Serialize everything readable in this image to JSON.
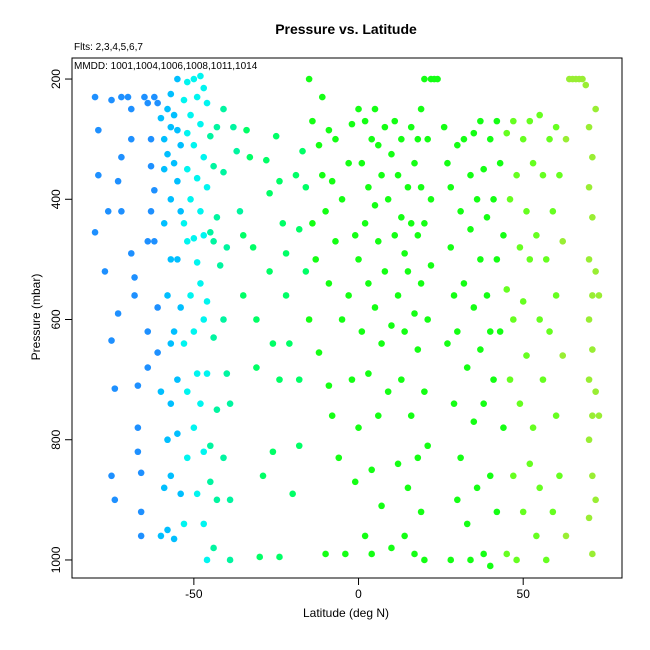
{
  "chart_data": {
    "type": "scatter",
    "title": "Pressure vs. Latitude",
    "notes": [
      "Flts: 2,3,4,5,6,7",
      "MMDD: 1001,1004,1006,1008,1011,1014"
    ],
    "xlabel": "Latitude (deg N)",
    "ylabel": "Pressure (mbar)",
    "xlim": [
      -87,
      80
    ],
    "ylim": [
      1030,
      165
    ],
    "y_reversed": true,
    "x_ticks": [
      -50,
      0,
      50
    ],
    "y_ticks": [
      200,
      400,
      600,
      800,
      1000
    ],
    "grid": false,
    "legend": "none",
    "color_encoding": "point colour shifts with latitude from blue (south) through cyan to green (north)",
    "colors": {
      "blue": "#1e90ff",
      "cyan_blue": "#00bfff",
      "cyan": "#00f5f0",
      "aqua_green": "#00f5a0",
      "spring_green": "#00ff66",
      "green": "#14ff14",
      "light_green": "#66ff20",
      "yellow_green": "#99ee33"
    },
    "points": [
      [
        -80,
        230
      ],
      [
        -79,
        285
      ],
      [
        -79,
        360
      ],
      [
        -80,
        455
      ],
      [
        -77,
        520
      ],
      [
        -76,
        420
      ],
      [
        -75,
        235
      ],
      [
        -75,
        635
      ],
      [
        -74,
        715
      ],
      [
        -74,
        900
      ],
      [
        -75,
        860
      ],
      [
        -73,
        590
      ],
      [
        -72,
        420
      ],
      [
        -73,
        370
      ],
      [
        -72,
        330
      ],
      [
        -72,
        230
      ],
      [
        -70,
        230
      ],
      [
        -69,
        250
      ],
      [
        -69,
        300
      ],
      [
        -69,
        490
      ],
      [
        -68,
        530
      ],
      [
        -68,
        560
      ],
      [
        -67,
        710
      ],
      [
        -67,
        780
      ],
      [
        -67,
        820
      ],
      [
        -66,
        855
      ],
      [
        -66,
        920
      ],
      [
        -66,
        960
      ],
      [
        -65,
        230
      ],
      [
        -64,
        240
      ],
      [
        -64,
        470
      ],
      [
        -64,
        620
      ],
      [
        -64,
        680
      ],
      [
        -63,
        300
      ],
      [
        -63,
        345
      ],
      [
        -63,
        420
      ],
      [
        -62,
        230
      ],
      [
        -62,
        385
      ],
      [
        -62,
        470
      ],
      [
        -61,
        240
      ],
      [
        -61,
        580
      ],
      [
        -61,
        655
      ],
      [
        -60,
        265
      ],
      [
        -60,
        720
      ],
      [
        -60,
        960
      ],
      [
        -59,
        300
      ],
      [
        -59,
        350
      ],
      [
        -59,
        440
      ],
      [
        -59,
        880
      ],
      [
        -58,
        250
      ],
      [
        -58,
        325
      ],
      [
        -58,
        560
      ],
      [
        -58,
        800
      ],
      [
        -58,
        950
      ],
      [
        -57,
        225
      ],
      [
        -57,
        280
      ],
      [
        -57,
        400
      ],
      [
        -57,
        500
      ],
      [
        -57,
        640
      ],
      [
        -57,
        740
      ],
      [
        -57,
        860
      ],
      [
        -56,
        260
      ],
      [
        -56,
        340
      ],
      [
        -56,
        620
      ],
      [
        -56,
        965
      ],
      [
        -55,
        200
      ],
      [
        -55,
        285
      ],
      [
        -55,
        370
      ],
      [
        -55,
        500
      ],
      [
        -55,
        700
      ],
      [
        -55,
        790
      ],
      [
        -54,
        310
      ],
      [
        -54,
        420
      ],
      [
        -54,
        580
      ],
      [
        -54,
        890
      ],
      [
        -53,
        235
      ],
      [
        -53,
        440
      ],
      [
        -53,
        640
      ],
      [
        -53,
        940
      ],
      [
        -52,
        205
      ],
      [
        -52,
        290
      ],
      [
        -52,
        350
      ],
      [
        -52,
        470
      ],
      [
        -52,
        720
      ],
      [
        -52,
        830
      ],
      [
        -51,
        260
      ],
      [
        -51,
        400
      ],
      [
        -51,
        560
      ],
      [
        -50,
        200
      ],
      [
        -50,
        310
      ],
      [
        -50,
        465
      ],
      [
        -50,
        620
      ],
      [
        -50,
        780
      ],
      [
        -49,
        230
      ],
      [
        -49,
        365
      ],
      [
        -49,
        505
      ],
      [
        -49,
        690
      ],
      [
        -49,
        890
      ],
      [
        -48,
        195
      ],
      [
        -48,
        275
      ],
      [
        -48,
        420
      ],
      [
        -48,
        540
      ],
      [
        -48,
        740
      ],
      [
        -47,
        215
      ],
      [
        -47,
        330
      ],
      [
        -47,
        460
      ],
      [
        -47,
        600
      ],
      [
        -47,
        820
      ],
      [
        -47,
        940
      ],
      [
        -46,
        240
      ],
      [
        -46,
        380
      ],
      [
        -46,
        570
      ],
      [
        -46,
        690
      ],
      [
        -46,
        1000
      ],
      [
        -45,
        295
      ],
      [
        -45,
        455
      ],
      [
        -45,
        810
      ],
      [
        -45,
        870
      ],
      [
        -44,
        345
      ],
      [
        -44,
        470
      ],
      [
        -44,
        630
      ],
      [
        -44,
        980
      ],
      [
        -43,
        280
      ],
      [
        -43,
        430
      ],
      [
        -43,
        750
      ],
      [
        -43,
        900
      ],
      [
        -42,
        510
      ],
      [
        -41,
        250
      ],
      [
        -41,
        355
      ],
      [
        -41,
        600
      ],
      [
        -41,
        830
      ],
      [
        -40,
        480
      ],
      [
        -40,
        690
      ],
      [
        -39,
        740
      ],
      [
        -39,
        900
      ],
      [
        -39,
        1000
      ],
      [
        -38,
        280
      ],
      [
        -37,
        320
      ],
      [
        -36,
        420
      ],
      [
        -35,
        460
      ],
      [
        -35,
        560
      ],
      [
        -34,
        285
      ],
      [
        -33,
        330
      ],
      [
        -32,
        480
      ],
      [
        -31,
        600
      ],
      [
        -31,
        680
      ],
      [
        -30,
        995
      ],
      [
        -29,
        860
      ],
      [
        -28,
        335
      ],
      [
        -27,
        390
      ],
      [
        -27,
        520
      ],
      [
        -26,
        640
      ],
      [
        -26,
        820
      ],
      [
        -25,
        295
      ],
      [
        -24,
        370
      ],
      [
        -24,
        700
      ],
      [
        -24,
        995
      ],
      [
        -23,
        440
      ],
      [
        -22,
        490
      ],
      [
        -22,
        560
      ],
      [
        -21,
        640
      ],
      [
        -20,
        890
      ],
      [
        -19,
        360
      ],
      [
        -18,
        450
      ],
      [
        -18,
        700
      ],
      [
        -18,
        810
      ],
      [
        -17,
        320
      ],
      [
        -16,
        380
      ],
      [
        -16,
        520
      ],
      [
        -15,
        200
      ],
      [
        -15,
        600
      ],
      [
        -14,
        270
      ],
      [
        -14,
        440
      ],
      [
        -13,
        500
      ],
      [
        -12,
        310
      ],
      [
        -12,
        655
      ],
      [
        -11,
        230
      ],
      [
        -11,
        360
      ],
      [
        -10,
        420
      ],
      [
        -10,
        990
      ],
      [
        -9,
        285
      ],
      [
        -9,
        540
      ],
      [
        -9,
        710
      ],
      [
        -8,
        370
      ],
      [
        -8,
        760
      ],
      [
        -7,
        300
      ],
      [
        -7,
        470
      ],
      [
        -6,
        830
      ],
      [
        -5,
        400
      ],
      [
        -5,
        600
      ],
      [
        -4,
        990
      ],
      [
        -3,
        340
      ],
      [
        -3,
        560
      ],
      [
        -2,
        275
      ],
      [
        -2,
        700
      ],
      [
        -1,
        460
      ],
      [
        -1,
        870
      ],
      [
        0,
        250
      ],
      [
        0,
        500
      ],
      [
        0,
        780
      ],
      [
        1,
        340
      ],
      [
        1,
        620
      ],
      [
        2,
        270
      ],
      [
        2,
        440
      ],
      [
        2,
        960
      ],
      [
        3,
        380
      ],
      [
        3,
        540
      ],
      [
        3,
        690
      ],
      [
        4,
        300
      ],
      [
        4,
        850
      ],
      [
        4,
        990
      ],
      [
        5,
        250
      ],
      [
        5,
        410
      ],
      [
        5,
        580
      ],
      [
        6,
        310
      ],
      [
        6,
        470
      ],
      [
        6,
        760
      ],
      [
        7,
        360
      ],
      [
        7,
        640
      ],
      [
        7,
        910
      ],
      [
        8,
        280
      ],
      [
        8,
        520
      ],
      [
        9,
        400
      ],
      [
        9,
        720
      ],
      [
        10,
        325
      ],
      [
        10,
        610
      ],
      [
        10,
        980
      ],
      [
        11,
        270
      ],
      [
        11,
        460
      ],
      [
        12,
        360
      ],
      [
        12,
        560
      ],
      [
        12,
        840
      ],
      [
        13,
        300
      ],
      [
        13,
        430
      ],
      [
        13,
        700
      ],
      [
        14,
        490
      ],
      [
        14,
        620
      ],
      [
        14,
        960
      ],
      [
        15,
        380
      ],
      [
        15,
        520
      ],
      [
        15,
        880
      ],
      [
        16,
        280
      ],
      [
        16,
        440
      ],
      [
        16,
        760
      ],
      [
        17,
        340
      ],
      [
        17,
        590
      ],
      [
        17,
        990
      ],
      [
        18,
        300
      ],
      [
        18,
        460
      ],
      [
        18,
        650
      ],
      [
        18,
        830
      ],
      [
        19,
        250
      ],
      [
        19,
        380
      ],
      [
        19,
        540
      ],
      [
        19,
        920
      ],
      [
        20,
        200
      ],
      [
        20,
        440
      ],
      [
        20,
        720
      ],
      [
        20,
        1000
      ],
      [
        21,
        300
      ],
      [
        21,
        600
      ],
      [
        21,
        810
      ],
      [
        22,
        200
      ],
      [
        22,
        400
      ],
      [
        22,
        510
      ],
      [
        23,
        200
      ],
      [
        24,
        200
      ],
      [
        26,
        280
      ],
      [
        27,
        340
      ],
      [
        27,
        640
      ],
      [
        28,
        380
      ],
      [
        28,
        480
      ],
      [
        28,
        1000
      ],
      [
        29,
        560
      ],
      [
        29,
        740
      ],
      [
        30,
        310
      ],
      [
        30,
        620
      ],
      [
        30,
        900
      ],
      [
        31,
        420
      ],
      [
        31,
        830
      ],
      [
        32,
        300
      ],
      [
        32,
        540
      ],
      [
        33,
        680
      ],
      [
        33,
        940
      ],
      [
        34,
        360
      ],
      [
        34,
        450
      ],
      [
        34,
        1000
      ],
      [
        35,
        290
      ],
      [
        35,
        580
      ],
      [
        35,
        770
      ],
      [
        36,
        400
      ],
      [
        36,
        880
      ],
      [
        37,
        270
      ],
      [
        37,
        500
      ],
      [
        37,
        650
      ],
      [
        38,
        350
      ],
      [
        38,
        740
      ],
      [
        38,
        990
      ],
      [
        39,
        430
      ],
      [
        39,
        560
      ],
      [
        40,
        300
      ],
      [
        40,
        620
      ],
      [
        40,
        860
      ],
      [
        40,
        1010
      ],
      [
        41,
        400
      ],
      [
        41,
        700
      ],
      [
        42,
        270
      ],
      [
        42,
        500
      ],
      [
        42,
        920
      ],
      [
        43,
        340
      ],
      [
        43,
        620
      ],
      [
        44,
        460
      ],
      [
        44,
        780
      ],
      [
        45,
        290
      ],
      [
        45,
        550
      ],
      [
        45,
        990
      ],
      [
        46,
        400
      ],
      [
        46,
        700
      ],
      [
        47,
        270
      ],
      [
        47,
        600
      ],
      [
        47,
        860
      ],
      [
        48,
        360
      ],
      [
        48,
        1000
      ],
      [
        49,
        480
      ],
      [
        49,
        740
      ],
      [
        50,
        300
      ],
      [
        50,
        570
      ],
      [
        50,
        920
      ],
      [
        51,
        420
      ],
      [
        51,
        660
      ],
      [
        52,
        270
      ],
      [
        52,
        500
      ],
      [
        52,
        840
      ],
      [
        53,
        340
      ],
      [
        53,
        780
      ],
      [
        54,
        460
      ],
      [
        54,
        960
      ],
      [
        55,
        260
      ],
      [
        55,
        600
      ],
      [
        55,
        880
      ],
      [
        56,
        360
      ],
      [
        56,
        700
      ],
      [
        57,
        500
      ],
      [
        57,
        1000
      ],
      [
        58,
        300
      ],
      [
        58,
        620
      ],
      [
        59,
        420
      ],
      [
        59,
        920
      ],
      [
        60,
        280
      ],
      [
        60,
        560
      ],
      [
        60,
        760
      ],
      [
        61,
        360
      ],
      [
        61,
        860
      ],
      [
        62,
        470
      ],
      [
        62,
        660
      ],
      [
        63,
        300
      ],
      [
        63,
        960
      ],
      [
        64,
        200
      ],
      [
        65,
        200
      ],
      [
        66,
        200
      ],
      [
        67,
        200
      ],
      [
        68,
        200
      ],
      [
        69,
        210
      ],
      [
        70,
        280
      ],
      [
        70,
        380
      ],
      [
        70,
        500
      ],
      [
        70,
        600
      ],
      [
        70,
        700
      ],
      [
        70,
        800
      ],
      [
        70,
        930
      ],
      [
        71,
        330
      ],
      [
        71,
        430
      ],
      [
        71,
        560
      ],
      [
        71,
        650
      ],
      [
        71,
        760
      ],
      [
        71,
        860
      ],
      [
        71,
        990
      ],
      [
        72,
        250
      ],
      [
        72,
        520
      ],
      [
        72,
        720
      ],
      [
        72,
        900
      ],
      [
        73,
        560
      ],
      [
        73,
        760
      ]
    ]
  }
}
